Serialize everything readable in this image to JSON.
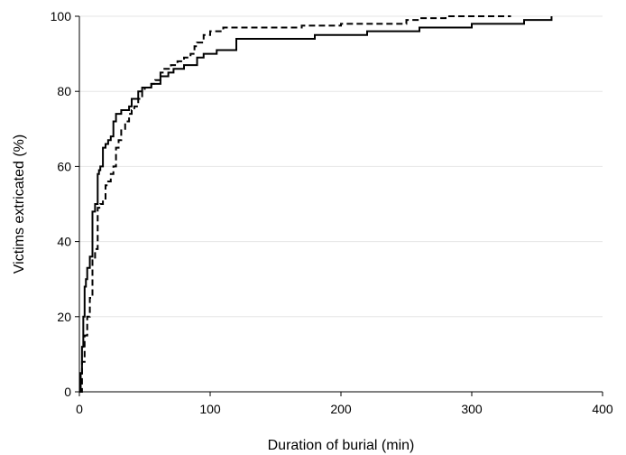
{
  "chart_data": {
    "type": "line",
    "title": "",
    "xlabel": "Duration of burial (min)",
    "ylabel": "Victims extricated (%)",
    "xlim": [
      0,
      400
    ],
    "ylim": [
      0,
      100
    ],
    "xticks": [
      0,
      100,
      200,
      300,
      400
    ],
    "yticks": [
      0,
      20,
      40,
      60,
      80,
      100
    ],
    "xtick_labels": [
      "0",
      "100",
      "200",
      "300",
      "400"
    ],
    "ytick_labels": [
      "0",
      "20",
      "40",
      "60",
      "80",
      "100"
    ],
    "grid": "horizontal",
    "legend": "none",
    "step": true,
    "series": [
      {
        "style": "solid",
        "color": "#000000",
        "x": [
          0,
          1,
          2,
          3,
          4,
          5,
          6,
          8,
          10,
          12,
          14,
          15,
          16,
          18,
          20,
          22,
          24,
          26,
          28,
          30,
          32,
          35,
          38,
          40,
          42,
          45,
          48,
          50,
          55,
          58,
          62,
          68,
          72,
          78,
          80,
          90,
          95,
          100,
          105,
          110,
          115,
          120,
          140,
          160,
          180,
          200,
          220,
          240,
          260,
          280,
          300,
          320,
          340,
          360,
          361
        ],
        "y": [
          0,
          5,
          12,
          20,
          28,
          30,
          33,
          36,
          48,
          50,
          58,
          59,
          60,
          65,
          66,
          67,
          68,
          72,
          74,
          74,
          75,
          75,
          76,
          78,
          78,
          80,
          81,
          81,
          82,
          82,
          84,
          85,
          86,
          86,
          87,
          89,
          90,
          90,
          91,
          91,
          91,
          94,
          94,
          94,
          95,
          95,
          96,
          96,
          97,
          97,
          98,
          98,
          99,
          99,
          100
        ]
      },
      {
        "style": "dashed",
        "color": "#000000",
        "x": [
          0,
          2,
          4,
          6,
          8,
          10,
          12,
          14,
          16,
          18,
          20,
          22,
          24,
          26,
          28,
          30,
          32,
          35,
          38,
          40,
          42,
          45,
          48,
          50,
          55,
          58,
          62,
          65,
          70,
          75,
          80,
          85,
          88,
          90,
          95,
          100,
          110,
          130,
          150,
          170,
          200,
          220,
          250,
          260,
          280,
          300,
          330
        ],
        "y": [
          0,
          8,
          15,
          20,
          25,
          35,
          38,
          49,
          50,
          51,
          55,
          56,
          58,
          60,
          65,
          67,
          70,
          72,
          74,
          75,
          76,
          78,
          80,
          81,
          82,
          83,
          85,
          86,
          87,
          88,
          89,
          90,
          92,
          93,
          95,
          96,
          97,
          97,
          97,
          97.5,
          98,
          98,
          99,
          99.5,
          100,
          100,
          100
        ]
      }
    ]
  }
}
